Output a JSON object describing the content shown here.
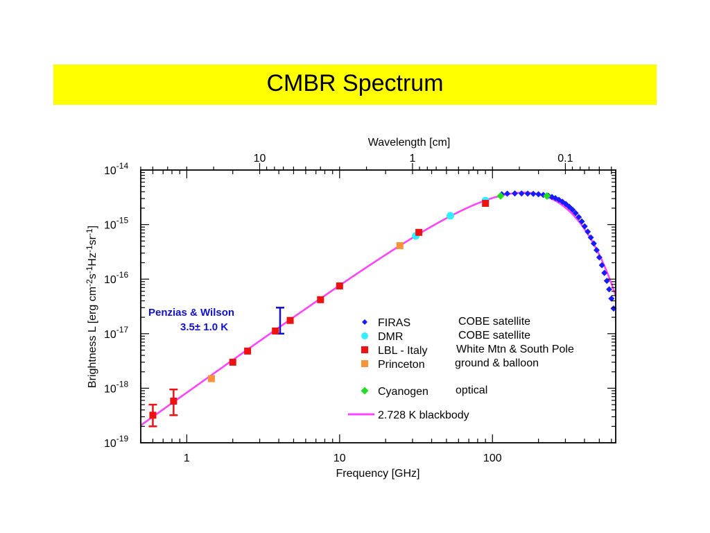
{
  "slide": {
    "title": "CMBR Spectrum",
    "title_bg": "#ffff00"
  },
  "chart_data": {
    "type": "scatter",
    "title": "",
    "xlabel": "Frequency [GHz]",
    "x2label": "Wavelength [cm]",
    "ylabel_parts": [
      "Brightness L [erg cm",
      "-2",
      "s",
      "-1",
      "Hz",
      "-1",
      "sr",
      "-1",
      "]"
    ],
    "xscale": "log",
    "yscale": "log",
    "xlim": [
      0.5,
      640
    ],
    "ylim": [
      1e-19,
      1e-14
    ],
    "x_ticks": [
      {
        "v": 1,
        "label": "1"
      },
      {
        "v": 10,
        "label": "10"
      },
      {
        "v": 100,
        "label": "100"
      }
    ],
    "x2_ticks": [
      {
        "v": 10,
        "label": "10"
      },
      {
        "v": 1,
        "label": "1"
      },
      {
        "v": 0.1,
        "label": "0.1"
      }
    ],
    "y_ticks": [
      {
        "v": 1e-14,
        "base": "10",
        "exp": "-14"
      },
      {
        "v": 1e-15,
        "base": "10",
        "exp": "-15"
      },
      {
        "v": 1e-16,
        "base": "10",
        "exp": "-16"
      },
      {
        "v": 1e-17,
        "base": "10",
        "exp": "-17"
      },
      {
        "v": 1e-18,
        "base": "10",
        "exp": "-18"
      },
      {
        "v": 1e-19,
        "base": "10",
        "exp": "-19"
      }
    ],
    "blackbody": {
      "name": "2.728 K blackbody",
      "T": 2.728,
      "color": "#ff44ff"
    },
    "series": [
      {
        "name": "FIRAS",
        "note": "COBE satellite",
        "marker": "diamond",
        "color": "#1a1aff",
        "points": [
          [
            115,
            3.6e-15
          ],
          [
            125,
            3.7e-15
          ],
          [
            140,
            3.72e-15
          ],
          [
            155,
            3.72e-15
          ],
          [
            170,
            3.7e-15
          ],
          [
            185,
            3.67e-15
          ],
          [
            200,
            3.6e-15
          ],
          [
            215,
            3.5e-15
          ],
          [
            232,
            3.37e-15
          ],
          [
            245,
            3.2e-15
          ],
          [
            258,
            3.05e-15
          ],
          [
            272,
            2.85e-15
          ],
          [
            287,
            2.62e-15
          ],
          [
            302,
            2.38e-15
          ],
          [
            318,
            2.12e-15
          ],
          [
            334,
            1.87e-15
          ],
          [
            350,
            1.62e-15
          ],
          [
            367,
            1.37e-15
          ],
          [
            384,
            1.14e-15
          ],
          [
            401,
            9.3e-16
          ],
          [
            420,
            7.4e-16
          ],
          [
            440,
            5.8e-16
          ],
          [
            460,
            4.5e-16
          ],
          [
            480,
            3.4e-16
          ],
          [
            500,
            2.5e-16
          ],
          [
            520,
            1.8e-16
          ],
          [
            540,
            1.3e-16
          ],
          [
            560,
            9.3e-17
          ],
          [
            580,
            6.5e-17
          ],
          [
            600,
            4.4e-17
          ],
          [
            620,
            2.9e-17
          ]
        ]
      },
      {
        "name": "DMR",
        "note": "COBE satellite",
        "marker": "circle",
        "color": "#33eeff",
        "points": [
          [
            31.5,
            6.2e-16
          ],
          [
            53,
            1.45e-15
          ],
          [
            90,
            2.75e-15
          ]
        ]
      },
      {
        "name": "LBL - Italy",
        "note": "White Mtn & South Pole",
        "marker": "square",
        "color": "#ee1111",
        "points": [
          [
            0.6,
            3.2e-19
          ],
          [
            0.82,
            5.8e-19
          ],
          [
            2.0,
            3e-18
          ],
          [
            2.5,
            4.8e-18
          ],
          [
            3.8,
            1.12e-17
          ],
          [
            4.75,
            1.75e-17
          ],
          [
            7.5,
            4.2e-17
          ],
          [
            10.0,
            7.5e-17
          ],
          [
            33,
            7.2e-16
          ],
          [
            90,
            2.45e-15
          ]
        ],
        "error_bars": [
          [
            0.6,
            2e-19,
            5e-19
          ],
          [
            0.82,
            3.2e-19,
            9.5e-19
          ]
        ]
      },
      {
        "name": "Princeton",
        "note": "ground & balloon",
        "marker": "square",
        "color": "#f7943a",
        "points": [
          [
            1.45,
            1.5e-18
          ],
          [
            24.8,
            4.1e-16
          ]
        ]
      },
      {
        "name": "Cyanogen",
        "note": "optical",
        "marker": "diamond",
        "color": "#22dd22",
        "points": [
          [
            113,
            3.35e-15
          ],
          [
            227,
            3.35e-15
          ]
        ]
      }
    ],
    "annotations": [
      {
        "lines": [
          "Penzias & Wilson",
          "3.5± 1.0 K"
        ],
        "color": "#1111cc",
        "errorbar": {
          "x": 4.08,
          "low": 1e-17,
          "high": 3e-17
        }
      }
    ],
    "legend_position": "lower-right"
  }
}
